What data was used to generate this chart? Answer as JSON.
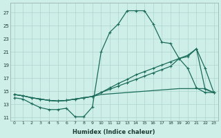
{
  "xlabel": "Humidex (Indice chaleur)",
  "background_color": "#ceeee8",
  "grid_color": "#aed4ce",
  "line_color": "#1a6b5a",
  "xlim": [
    -0.5,
    23.5
  ],
  "ylim": [
    10.5,
    28.5
  ],
  "xticks": [
    0,
    1,
    2,
    3,
    4,
    5,
    6,
    7,
    8,
    9,
    10,
    11,
    12,
    13,
    14,
    15,
    16,
    17,
    18,
    19,
    20,
    21,
    22,
    23
  ],
  "yticks": [
    11,
    13,
    15,
    17,
    19,
    21,
    23,
    25,
    27
  ],
  "series1_x": [
    0,
    1,
    2,
    3,
    4,
    5,
    6,
    7,
    8,
    9,
    10,
    11,
    12,
    13,
    14,
    15,
    16,
    17,
    18,
    19,
    20,
    21,
    22,
    23
  ],
  "series1_y": [
    14.0,
    13.8,
    13.1,
    12.5,
    12.2,
    12.2,
    12.4,
    11.1,
    11.1,
    12.6,
    21.0,
    24.0,
    25.3,
    27.3,
    27.3,
    27.3,
    25.3,
    22.5,
    22.3,
    20.0,
    18.5,
    15.5,
    14.8,
    14.8
  ],
  "series2_x": [
    0,
    1,
    2,
    3,
    4,
    5,
    6,
    7,
    8,
    9,
    10,
    11,
    12,
    13,
    14,
    15,
    16,
    17,
    18,
    19,
    20,
    21,
    22,
    23
  ],
  "series2_y": [
    14.5,
    14.3,
    14.0,
    13.8,
    13.6,
    13.5,
    13.6,
    13.8,
    14.0,
    14.2,
    14.8,
    15.3,
    15.8,
    16.3,
    16.8,
    17.3,
    17.8,
    18.3,
    18.8,
    20.0,
    20.5,
    21.5,
    18.5,
    14.8
  ],
  "series3_x": [
    0,
    1,
    2,
    3,
    4,
    5,
    6,
    7,
    8,
    9,
    10,
    11,
    12,
    13,
    14,
    15,
    16,
    17,
    18,
    19,
    20,
    21,
    22,
    23
  ],
  "series3_y": [
    14.5,
    14.3,
    14.0,
    13.8,
    13.6,
    13.5,
    13.6,
    13.8,
    14.0,
    14.2,
    14.8,
    15.5,
    16.2,
    16.8,
    17.5,
    18.0,
    18.5,
    19.0,
    19.5,
    20.0,
    20.3,
    21.5,
    15.3,
    14.8
  ],
  "series4_x": [
    0,
    1,
    2,
    3,
    4,
    5,
    6,
    7,
    8,
    9,
    10,
    11,
    12,
    13,
    14,
    15,
    16,
    17,
    18,
    19,
    20,
    21,
    22,
    23
  ],
  "series4_y": [
    14.5,
    14.3,
    14.0,
    13.8,
    13.6,
    13.5,
    13.6,
    13.8,
    14.0,
    14.2,
    14.5,
    14.6,
    14.7,
    14.8,
    14.9,
    15.0,
    15.1,
    15.2,
    15.3,
    15.4,
    15.4,
    15.4,
    15.4,
    14.8
  ]
}
